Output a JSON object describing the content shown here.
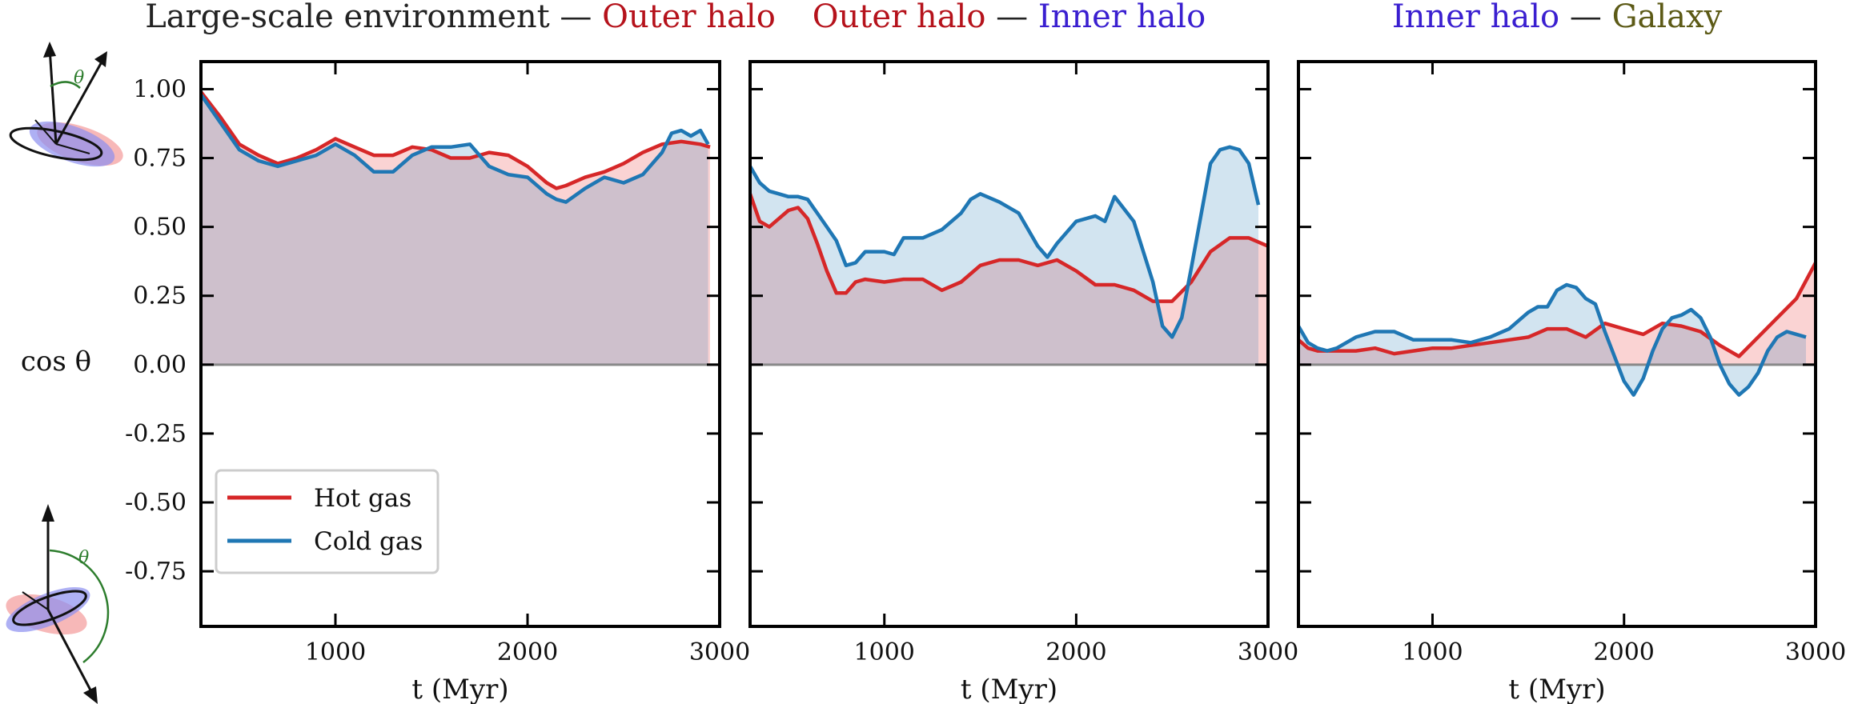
{
  "ylabel": "cos θ",
  "xlabel": "t (Myr)",
  "legend": [
    {
      "label": "Hot gas",
      "color": "#d62728"
    },
    {
      "label": "Cold gas",
      "color": "#1f77b4"
    }
  ],
  "icon_theta": "θ",
  "colors": {
    "hot": "#d62728",
    "cold": "#1f77b4",
    "hot_fill": "rgba(240,128,128,0.35)",
    "cold_fill": "rgba(31,119,180,0.20)",
    "zero_line": "#888888",
    "title_black": "#222222",
    "title_red": "#b5121b",
    "title_blue": "#3a1fd0",
    "title_olive": "#5c5a16"
  },
  "chart_data": [
    {
      "type": "line",
      "title_parts": [
        {
          "text": "Large-scale environment",
          "color": "#222222"
        },
        {
          "text": " — ",
          "color": "#222222"
        },
        {
          "text": "Outer halo",
          "color": "#b5121b"
        }
      ],
      "xlim": [
        300,
        3000
      ],
      "ylim": [
        -0.95,
        1.1
      ],
      "xticks": [
        1000,
        2000,
        3000
      ],
      "yticks": [
        1.0,
        0.75,
        0.5,
        0.25,
        0.0,
        -0.25,
        -0.5,
        -0.75
      ],
      "ytick_labels": [
        "1.00",
        "0.75",
        "0.50",
        "0.25",
        "0.00",
        "-0.25",
        "-0.50",
        "-0.75"
      ],
      "series": [
        {
          "name": "Hot gas",
          "x": [
            300,
            400,
            500,
            600,
            700,
            800,
            900,
            1000,
            1100,
            1200,
            1300,
            1400,
            1500,
            1600,
            1700,
            1800,
            1900,
            2000,
            2100,
            2150,
            2200,
            2300,
            2400,
            2500,
            2600,
            2700,
            2800,
            2900,
            2950
          ],
          "values": [
            0.99,
            0.9,
            0.8,
            0.76,
            0.73,
            0.75,
            0.78,
            0.82,
            0.79,
            0.76,
            0.76,
            0.79,
            0.78,
            0.75,
            0.75,
            0.77,
            0.76,
            0.72,
            0.66,
            0.64,
            0.65,
            0.68,
            0.7,
            0.73,
            0.77,
            0.8,
            0.81,
            0.8,
            0.79
          ]
        },
        {
          "name": "Cold gas",
          "x": [
            300,
            400,
            500,
            600,
            700,
            800,
            900,
            1000,
            1100,
            1200,
            1300,
            1400,
            1500,
            1600,
            1700,
            1800,
            1900,
            2000,
            2100,
            2150,
            2200,
            2300,
            2400,
            2500,
            2600,
            2700,
            2750,
            2800,
            2850,
            2900,
            2940
          ],
          "values": [
            0.98,
            0.88,
            0.78,
            0.74,
            0.72,
            0.74,
            0.76,
            0.8,
            0.76,
            0.7,
            0.7,
            0.76,
            0.79,
            0.79,
            0.8,
            0.72,
            0.69,
            0.68,
            0.62,
            0.6,
            0.59,
            0.64,
            0.68,
            0.66,
            0.69,
            0.77,
            0.84,
            0.85,
            0.83,
            0.85,
            0.8
          ]
        }
      ]
    },
    {
      "type": "line",
      "title_parts": [
        {
          "text": "Outer halo",
          "color": "#b5121b"
        },
        {
          "text": " — ",
          "color": "#222222"
        },
        {
          "text": "Inner halo",
          "color": "#3a1fd0"
        }
      ],
      "xlim": [
        300,
        3000
      ],
      "ylim": [
        -0.95,
        1.1
      ],
      "xticks": [
        1000,
        2000,
        3000
      ],
      "yticks": [],
      "ytick_labels": [],
      "series": [
        {
          "name": "Hot gas",
          "x": [
            300,
            350,
            400,
            450,
            500,
            550,
            600,
            650,
            700,
            750,
            800,
            850,
            900,
            1000,
            1100,
            1200,
            1300,
            1400,
            1500,
            1600,
            1700,
            1800,
            1900,
            2000,
            2100,
            2200,
            2300,
            2400,
            2500,
            2600,
            2700,
            2800,
            2900,
            3000
          ],
          "values": [
            0.62,
            0.52,
            0.5,
            0.53,
            0.56,
            0.57,
            0.53,
            0.44,
            0.34,
            0.26,
            0.26,
            0.3,
            0.31,
            0.3,
            0.31,
            0.31,
            0.27,
            0.3,
            0.36,
            0.38,
            0.38,
            0.36,
            0.38,
            0.34,
            0.29,
            0.29,
            0.27,
            0.23,
            0.23,
            0.3,
            0.41,
            0.46,
            0.46,
            0.43
          ]
        },
        {
          "name": "Cold gas",
          "x": [
            300,
            350,
            400,
            450,
            500,
            550,
            600,
            650,
            700,
            750,
            800,
            850,
            900,
            1000,
            1050,
            1100,
            1200,
            1300,
            1400,
            1450,
            1500,
            1600,
            1700,
            1800,
            1850,
            1900,
            2000,
            2100,
            2150,
            2200,
            2300,
            2400,
            2450,
            2500,
            2550,
            2600,
            2700,
            2750,
            2800,
            2850,
            2900,
            2950
          ],
          "values": [
            0.72,
            0.66,
            0.63,
            0.62,
            0.61,
            0.61,
            0.6,
            0.55,
            0.5,
            0.45,
            0.36,
            0.37,
            0.41,
            0.41,
            0.4,
            0.46,
            0.46,
            0.49,
            0.55,
            0.6,
            0.62,
            0.59,
            0.55,
            0.43,
            0.39,
            0.44,
            0.52,
            0.54,
            0.52,
            0.61,
            0.52,
            0.3,
            0.14,
            0.1,
            0.17,
            0.35,
            0.73,
            0.78,
            0.79,
            0.78,
            0.73,
            0.58
          ]
        }
      ]
    },
    {
      "type": "line",
      "title_parts": [
        {
          "text": "Inner halo",
          "color": "#3a1fd0"
        },
        {
          "text": " — ",
          "color": "#222222"
        },
        {
          "text": "Galaxy",
          "color": "#5c5a16"
        }
      ],
      "xlim": [
        300,
        3000
      ],
      "ylim": [
        -0.95,
        1.1
      ],
      "xticks": [
        1000,
        2000,
        3000
      ],
      "yticks": [],
      "ytick_labels": [],
      "series": [
        {
          "name": "Hot gas",
          "x": [
            300,
            350,
            400,
            500,
            600,
            700,
            800,
            900,
            1000,
            1100,
            1200,
            1300,
            1400,
            1500,
            1600,
            1700,
            1800,
            1900,
            2000,
            2100,
            2200,
            2300,
            2400,
            2500,
            2600,
            2700,
            2800,
            2900,
            3000
          ],
          "values": [
            0.09,
            0.06,
            0.05,
            0.05,
            0.05,
            0.06,
            0.04,
            0.05,
            0.06,
            0.06,
            0.07,
            0.08,
            0.09,
            0.1,
            0.13,
            0.13,
            0.1,
            0.15,
            0.13,
            0.11,
            0.15,
            0.14,
            0.12,
            0.07,
            0.03,
            0.1,
            0.17,
            0.24,
            0.37
          ]
        },
        {
          "name": "Cold gas",
          "x": [
            300,
            350,
            400,
            450,
            500,
            600,
            700,
            800,
            900,
            1000,
            1100,
            1200,
            1300,
            1400,
            1500,
            1550,
            1600,
            1650,
            1700,
            1750,
            1800,
            1850,
            1900,
            1950,
            2000,
            2050,
            2100,
            2150,
            2200,
            2250,
            2300,
            2350,
            2400,
            2450,
            2500,
            2550,
            2600,
            2650,
            2700,
            2750,
            2800,
            2850,
            2900,
            2950
          ],
          "values": [
            0.14,
            0.08,
            0.06,
            0.05,
            0.06,
            0.1,
            0.12,
            0.12,
            0.09,
            0.09,
            0.09,
            0.08,
            0.1,
            0.13,
            0.19,
            0.21,
            0.21,
            0.27,
            0.29,
            0.28,
            0.24,
            0.22,
            0.12,
            0.03,
            -0.06,
            -0.11,
            -0.05,
            0.05,
            0.13,
            0.17,
            0.18,
            0.2,
            0.17,
            0.1,
            0.0,
            -0.07,
            -0.11,
            -0.08,
            -0.03,
            0.05,
            0.1,
            0.12,
            0.11,
            0.1
          ]
        }
      ]
    }
  ]
}
